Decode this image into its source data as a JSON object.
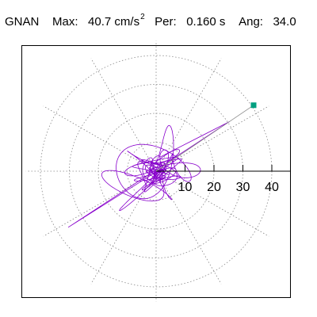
{
  "header": {
    "station": "GNAN",
    "max_label": "Max:",
    "max_value": "40.7",
    "max_unit": "cm/s",
    "max_unit_exp": "2",
    "per_label": "Per:",
    "per_value": "0.160 s",
    "ang_label": "Ang:",
    "ang_value": "34.0"
  },
  "colors": {
    "trace": "#8800cc",
    "marker": "#00a080",
    "grid": "#888888",
    "axis": "#000000"
  },
  "chart_data": {
    "type": "scatter",
    "title": "GNAN Max: 40.7 cm/s2 Per: 0.160 s Ang: 34.0",
    "radial_ticks": [
      10,
      20,
      30,
      40
    ],
    "radial_tick_labels": [
      "10",
      "20",
      "30",
      "40"
    ],
    "r_max": 45,
    "angle_grid_step_deg": 30,
    "grid": true,
    "peak_point": {
      "x": 33.7,
      "y": 22.8
    },
    "peak_angle_deg": 34.0,
    "peak_value": 40.7,
    "seed": 7
  }
}
